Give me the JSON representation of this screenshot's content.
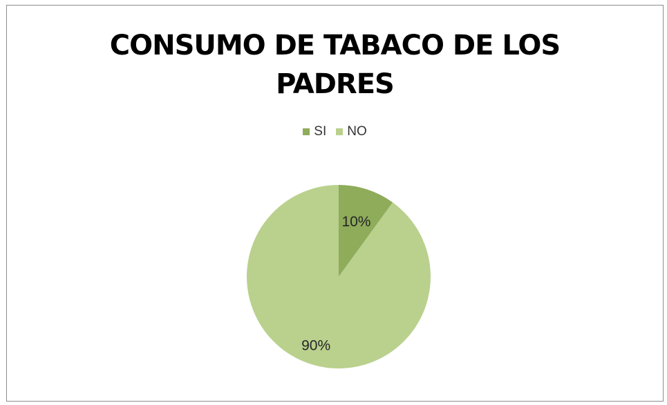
{
  "chart_data": {
    "type": "pie",
    "title_lines": [
      "CONSUMO DE TABACO DE LOS",
      "PADRES"
    ],
    "categories": [
      "SI",
      "NO"
    ],
    "values": [
      10,
      90
    ],
    "labels": [
      "10%",
      "90%"
    ],
    "colors": [
      "#8eac5a",
      "#b9d18d"
    ],
    "legend_position": "top",
    "start_angle_deg": 0,
    "direction": "clockwise"
  }
}
